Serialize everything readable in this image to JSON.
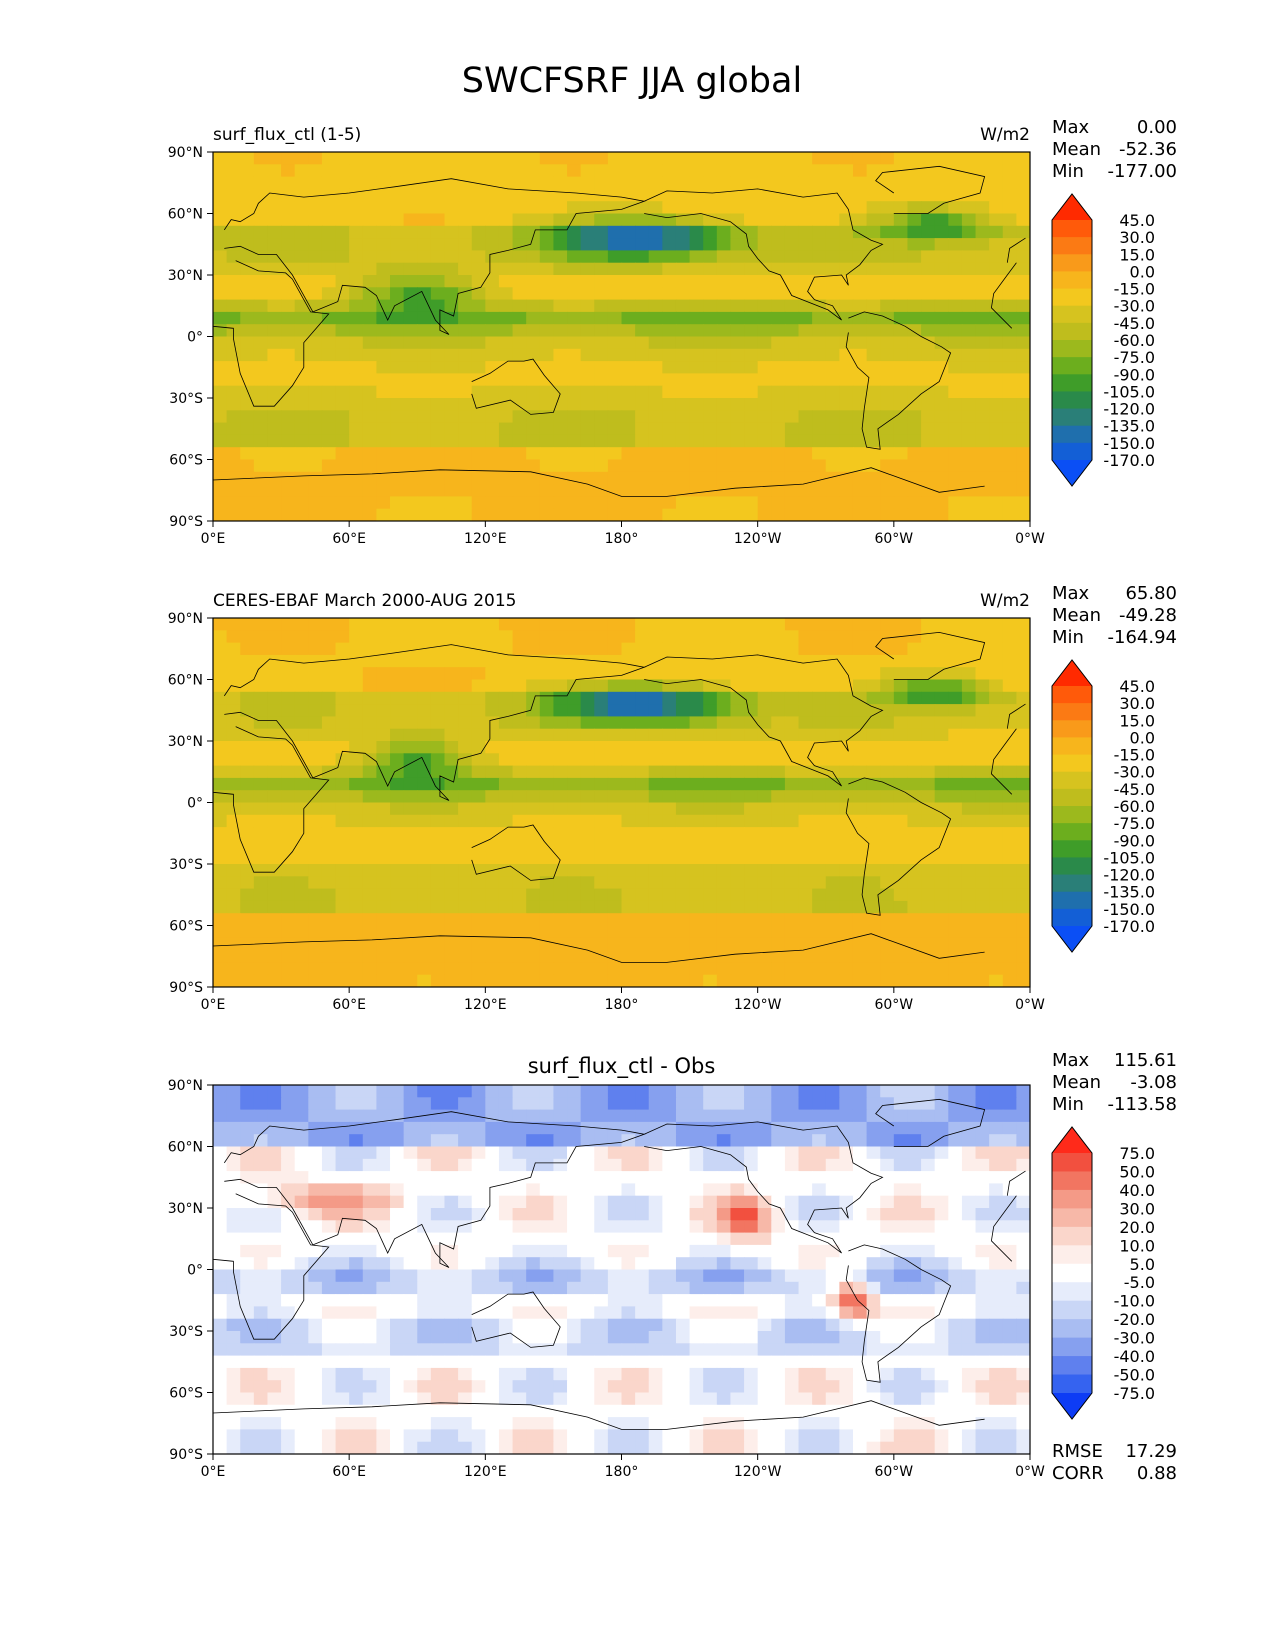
{
  "figure": {
    "title": "SWCFSRF JJA global"
  },
  "axes": {
    "lat_ticks": [
      "90°N",
      "60°N",
      "30°N",
      "0°",
      "30°S",
      "60°S",
      "90°S"
    ],
    "lon_ticks": [
      "0°E",
      "60°E",
      "120°E",
      "180°",
      "120°W",
      "60°W",
      "0°W"
    ]
  },
  "panels": [
    {
      "left_title": "surf_flux_ctl (1-5)",
      "center_title": "",
      "units": "W/m2",
      "stats": [
        {
          "label": "Max",
          "value": "0.00"
        },
        {
          "label": "Mean",
          "value": "-52.36"
        },
        {
          "label": "Min",
          "value": "-177.00"
        }
      ],
      "colorbar": {
        "labels": [
          "45.0",
          "30.0",
          "15.0",
          "0.0",
          "-15.0",
          "-30.0",
          "-45.0",
          "-60.0",
          "-75.0",
          "-90.0",
          "-105.0",
          "-120.0",
          "-135.0",
          "-150.0",
          "-170.0"
        ],
        "colors": [
          "#ff2a00",
          "#ff5a0a",
          "#fb7a14",
          "#f99a1a",
          "#f7b51c",
          "#f3c81e",
          "#d6c31f",
          "#bfbd1d",
          "#9cb91d",
          "#6cae1e",
          "#3f9d29",
          "#2a8a4a",
          "#2a7f78",
          "#1f6fad",
          "#135fd6",
          "#0b4ff5"
        ]
      }
    },
    {
      "left_title": "CERES-EBAF March 2000-AUG 2015",
      "center_title": "",
      "units": "W/m2",
      "stats": [
        {
          "label": "Max",
          "value": "65.80"
        },
        {
          "label": "Mean",
          "value": "-49.28"
        },
        {
          "label": "Min",
          "value": "-164.94"
        }
      ],
      "colorbar": {
        "labels": [
          "45.0",
          "30.0",
          "15.0",
          "0.0",
          "-15.0",
          "-30.0",
          "-45.0",
          "-60.0",
          "-75.0",
          "-90.0",
          "-105.0",
          "-120.0",
          "-135.0",
          "-150.0",
          "-170.0"
        ],
        "colors": [
          "#ff2a00",
          "#ff5a0a",
          "#fb7a14",
          "#f99a1a",
          "#f7b51c",
          "#f3c81e",
          "#d6c31f",
          "#bfbd1d",
          "#9cb91d",
          "#6cae1e",
          "#3f9d29",
          "#2a8a4a",
          "#2a7f78",
          "#1f6fad",
          "#135fd6",
          "#0b4ff5"
        ]
      }
    },
    {
      "left_title": "",
      "center_title": "surf_flux_ctl - Obs",
      "units": "",
      "stats": [
        {
          "label": "Max",
          "value": "115.61"
        },
        {
          "label": "Mean",
          "value": "-3.08"
        },
        {
          "label": "Min",
          "value": "-113.58"
        }
      ],
      "extra_stats": [
        {
          "label": "RMSE",
          "value": "17.29"
        },
        {
          "label": "CORR",
          "value": "0.88"
        }
      ],
      "colorbar": {
        "labels": [
          "75.0",
          "50.0",
          "40.0",
          "30.0",
          "20.0",
          "10.0",
          "5.0",
          "-5.0",
          "-10.0",
          "-20.0",
          "-30.0",
          "-40.0",
          "-50.0",
          "-75.0"
        ],
        "colors": [
          "#ff2a1a",
          "#f2503f",
          "#f27561",
          "#f49a87",
          "#f7b8a8",
          "#fad6cb",
          "#fdeeea",
          "#ffffff",
          "#e6ecfb",
          "#c9d6f6",
          "#a9bdf2",
          "#86a0ef",
          "#5f80ee",
          "#3563f0",
          "#0d3cf5"
        ]
      }
    }
  ]
}
